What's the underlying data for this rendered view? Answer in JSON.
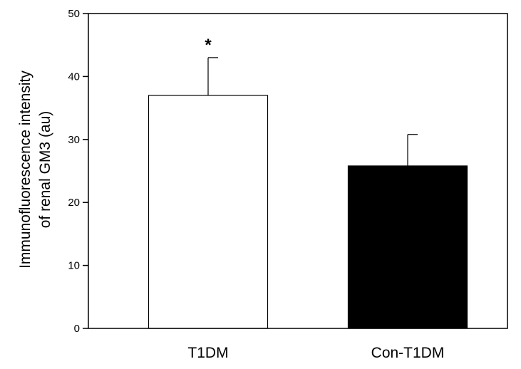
{
  "chart_data": {
    "type": "bar",
    "categories": [
      "T1DM",
      "Con-T1DM"
    ],
    "values": [
      37,
      25.8
    ],
    "errors": [
      6,
      5
    ],
    "annotations": [
      "*",
      ""
    ],
    "bar_colors": [
      "#ffffff",
      "#000000"
    ],
    "ylabel_lines": [
      "Immunofluorescence intensity",
      "of renal GM3 (au)"
    ],
    "ylim": [
      0,
      50
    ],
    "yticks": [
      0,
      10,
      20,
      30,
      40,
      50
    ],
    "grid": false
  }
}
